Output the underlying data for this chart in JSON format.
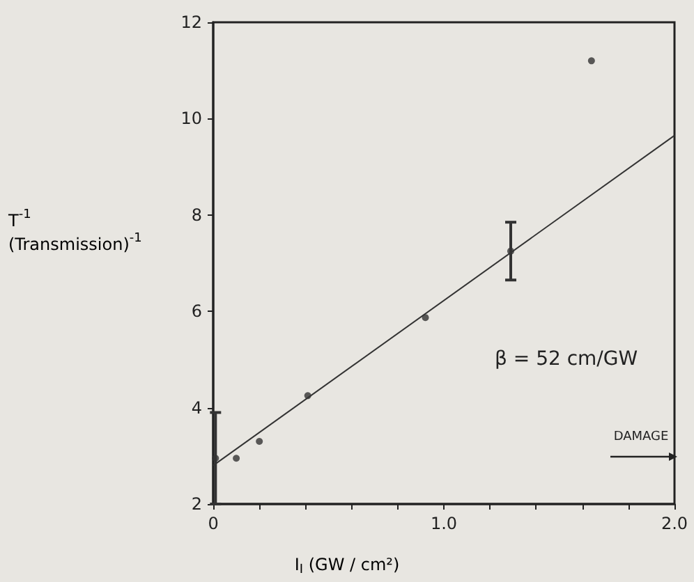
{
  "chart_data": {
    "type": "scatter",
    "xlabel": "I$_{I}$ (GW / cm²)",
    "ylabel": "T$^{-1}$\n(Transmission)$^{-1}$",
    "xlim": [
      0,
      2.0
    ],
    "ylim": [
      2,
      12
    ],
    "xticks": [
      {
        "value": 0,
        "label": "0"
      },
      {
        "value": 0.2,
        "label": null
      },
      {
        "value": 0.4,
        "label": null
      },
      {
        "value": 0.6,
        "label": null
      },
      {
        "value": 0.8,
        "label": null
      },
      {
        "value": 1.0,
        "label": "1.0"
      },
      {
        "value": 1.2,
        "label": null
      },
      {
        "value": 1.4,
        "label": null
      },
      {
        "value": 1.6,
        "label": null
      },
      {
        "value": 1.8,
        "label": null
      },
      {
        "value": 2.0,
        "label": "2.0"
      }
    ],
    "yticks": [
      2,
      4,
      6,
      8,
      10,
      12
    ],
    "series": [
      {
        "type": "scatter",
        "color": "#333333",
        "marker": "circle",
        "x": [
          0.01,
          0.1,
          0.2,
          0.41,
          0.92,
          1.29,
          1.64
        ],
        "values": [
          2.95,
          2.95,
          3.3,
          4.25,
          5.87,
          7.25,
          11.2
        ],
        "errors": [
          [
            2.0,
            3.9
          ],
          null,
          null,
          null,
          null,
          [
            6.65,
            7.85
          ],
          null
        ]
      },
      {
        "type": "line",
        "color": "#333333",
        "marker": "none",
        "x": [
          0,
          2.0
        ],
        "values": [
          2.8,
          9.65
        ]
      }
    ],
    "annotations": [
      "β = 52 cm/GW",
      "DAMAGE"
    ],
    "grid": false
  }
}
